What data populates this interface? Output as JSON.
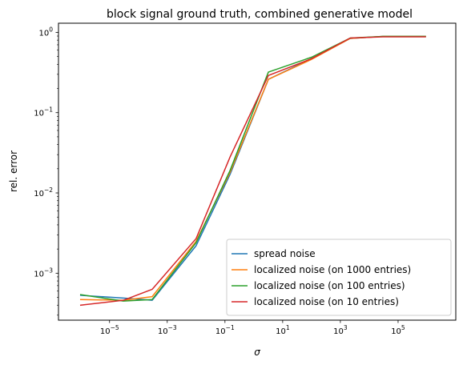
{
  "chart_data": {
    "type": "line",
    "title": "block signal ground truth, combined generative model",
    "xlabel": "σ",
    "ylabel": "rel. error",
    "xscale": "log",
    "yscale": "log",
    "xlim": [
      1.7e-07,
      10000000.0
    ],
    "ylim": [
      0.00026,
      1.3
    ],
    "grid": false,
    "legend_position": "lower right",
    "x_ticks": [
      {
        "value": 1e-05,
        "base": "10",
        "exp": "−5"
      },
      {
        "value": 0.001,
        "base": "10",
        "exp": "−3"
      },
      {
        "value": 0.1,
        "base": "10",
        "exp": "−1"
      },
      {
        "value": 10.0,
        "base": "10",
        "exp": "1"
      },
      {
        "value": 1000.0,
        "base": "10",
        "exp": "3"
      },
      {
        "value": 100000.0,
        "base": "10",
        "exp": "5"
      }
    ],
    "y_ticks": [
      {
        "value": 0.001,
        "base": "10",
        "exp": "−3"
      },
      {
        "value": 0.01,
        "base": "10",
        "exp": "−2"
      },
      {
        "value": 0.1,
        "base": "10",
        "exp": "−1"
      },
      {
        "value": 1.0,
        "base": "10",
        "exp": "0"
      }
    ],
    "x": [
      1e-06,
      3e-05,
      0.0003,
      0.01,
      0.15,
      3.2,
      100.0,
      2200.0,
      30000.0,
      880000.0
    ],
    "series": [
      {
        "name": "spread noise",
        "color": "#1f77b4",
        "values": [
          0.00053,
          0.00049,
          0.00046,
          0.0022,
          0.017,
          0.26,
          0.47,
          0.84,
          0.89,
          0.89
        ]
      },
      {
        "name": "localized noise (on 1000 entries)",
        "color": "#ff7f0e",
        "values": [
          0.00047,
          0.00046,
          0.00051,
          0.0025,
          0.018,
          0.26,
          0.46,
          0.84,
          0.89,
          0.89
        ]
      },
      {
        "name": "localized noise (on 100 entries)",
        "color": "#2ca02c",
        "values": [
          0.00054,
          0.00045,
          0.00047,
          0.0024,
          0.019,
          0.32,
          0.49,
          0.85,
          0.89,
          0.89
        ]
      },
      {
        "name": "localized noise (on 10 entries)",
        "color": "#d62728",
        "values": [
          0.0004,
          0.00046,
          0.00063,
          0.0027,
          0.028,
          0.29,
          0.47,
          0.85,
          0.88,
          0.88
        ]
      }
    ]
  }
}
